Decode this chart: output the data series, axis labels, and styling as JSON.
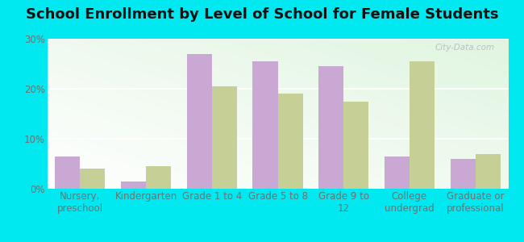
{
  "title": "School Enrollment by Level of School for Female Students",
  "categories": [
    "Nursery,\npreschool",
    "Kindergarten",
    "Grade 1 to 4",
    "Grade 5 to 8",
    "Grade 9 to\n12",
    "College\nundergrad",
    "Graduate or\nprofessional"
  ],
  "gwinner": [
    6.5,
    1.5,
    27.0,
    25.5,
    24.5,
    6.5,
    6.0
  ],
  "north_dakota": [
    4.0,
    4.5,
    20.5,
    19.0,
    17.5,
    25.5,
    7.0
  ],
  "gwinner_color": "#c9a8d4",
  "north_dakota_color": "#c5cf96",
  "background_outer": "#00e8f0",
  "background_inner_top": "#d4edd4",
  "background_inner_bottom": "#f0f8f0",
  "ylim": [
    0,
    30
  ],
  "yticks": [
    0,
    10,
    20,
    30
  ],
  "ytick_labels": [
    "0%",
    "10%",
    "20%",
    "30%"
  ],
  "title_fontsize": 13,
  "legend_fontsize": 10,
  "tick_fontsize": 8.5,
  "watermark": "City-Data.com"
}
